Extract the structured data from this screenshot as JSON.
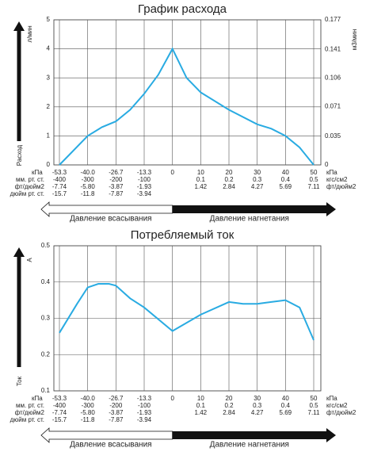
{
  "chart_data": [
    {
      "type": "line",
      "title": "График расхода",
      "y_label": "Расход",
      "y_unit": "л/мин",
      "y2_unit": "м3/мин",
      "x": [
        -53.3,
        -40,
        -33.3,
        -26.7,
        -20,
        -13.3,
        -6.7,
        0,
        5,
        10,
        20,
        30,
        35,
        40,
        45,
        50
      ],
      "values": [
        0,
        1.0,
        1.3,
        1.5,
        1.9,
        2.45,
        3.1,
        4.0,
        3.0,
        2.5,
        1.9,
        1.4,
        1.25,
        1.0,
        0.6,
        0
      ],
      "color": "#29abe2",
      "ylim": [
        0,
        5
      ],
      "yticks": [
        0,
        1,
        2,
        3,
        4,
        5
      ],
      "y2lim": [
        0,
        0.177
      ],
      "y2ticks": [
        0,
        0.035,
        0.071,
        0.106,
        0.141,
        0.177
      ],
      "xticks": [
        -53.3,
        {
          "value": -40,
          "label": "-40.0"
        },
        -26.7,
        -13.3,
        0,
        10,
        20,
        30,
        40,
        50
      ],
      "x_label_left": "кПа",
      "x_label_right": "кПа",
      "xtick_rows": [
        {
          "left": "мм. рт. ст.",
          "right": "кгс/см2",
          "labels": [
            "-400",
            "-300",
            "-200",
            "-100",
            null,
            "0.1",
            "0.2",
            "0.3",
            "0.4",
            "0.5"
          ]
        },
        {
          "left": "фт/дюйм2",
          "right": "фт/дюйм2",
          "labels": [
            "-7.74",
            "-5.80",
            "-3.87",
            "-1.93",
            null,
            "1.42",
            "2.84",
            "4.27",
            "5.69",
            "7.11"
          ]
        },
        {
          "left": "дюйм рт. ст.",
          "right": null,
          "labels": [
            "-15.7",
            "-11.8",
            "-7.87",
            "-3.94",
            null,
            null,
            null,
            null,
            null,
            null
          ]
        }
      ],
      "suction_label": "Давление всасывания",
      "discharge_label": "Давление нагнетания"
    },
    {
      "type": "line",
      "title": "Потребляемый ток",
      "y_label": "Ток",
      "y_unit": "A",
      "x": [
        -53.3,
        -45,
        -40,
        -35,
        -30,
        -26.7,
        -20,
        -13.3,
        0,
        10,
        20,
        25,
        30,
        35,
        40,
        45,
        50
      ],
      "values": [
        0.26,
        0.34,
        0.385,
        0.395,
        0.395,
        0.39,
        0.355,
        0.33,
        0.265,
        0.31,
        0.345,
        0.34,
        0.34,
        0.345,
        0.35,
        0.33,
        0.24
      ],
      "color": "#29abe2",
      "ylim": [
        0.1,
        0.5
      ],
      "yticks": [
        0.1,
        0.2,
        0.3,
        0.4,
        0.5
      ],
      "xticks": [
        -53.3,
        {
          "value": -40,
          "label": "-40.0"
        },
        -26.7,
        -13.3,
        0,
        10,
        20,
        30,
        40,
        50
      ],
      "x_label_left": "кПа",
      "x_label_right": "кПа",
      "xtick_rows": [
        {
          "left": "мм. рт. ст.",
          "right": "кгс/см2",
          "labels": [
            "-400",
            "-300",
            "-200",
            "-100",
            null,
            "0.1",
            "0.2",
            "0.3",
            "0.4",
            "0.5"
          ]
        },
        {
          "left": "фт/дюйм2",
          "right": "фт/дюйм2",
          "labels": [
            "-7.74",
            "-5.80",
            "-3.87",
            "-1.93",
            null,
            "1.42",
            "2.84",
            "4.27",
            "5.69",
            "7.11"
          ]
        },
        {
          "left": "дюйм рт. ст.",
          "right": null,
          "labels": [
            "-15.7",
            "-11.8",
            "-7.87",
            "-3.94",
            null,
            null,
            null,
            null,
            null,
            null
          ]
        }
      ],
      "suction_label": "Давление всасывания",
      "discharge_label": "Давление нагнетания"
    }
  ]
}
